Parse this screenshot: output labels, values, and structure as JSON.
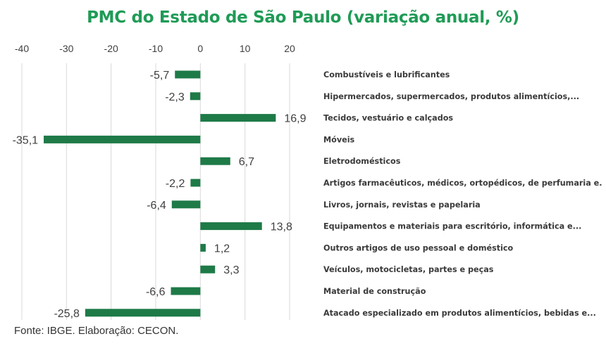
{
  "chart_data": {
    "type": "bar",
    "orientation": "horizontal",
    "title": "PMC do Estado de São Paulo (variação anual, %)",
    "xlabel": "",
    "ylabel": "",
    "xlim": [
      -40,
      20
    ],
    "xticks": [
      -40,
      -30,
      -20,
      -10,
      0,
      10,
      20
    ],
    "xtick_labels": [
      "-40",
      "-30",
      "-20",
      "-10",
      "0",
      "10",
      "20"
    ],
    "grid": true,
    "bar_color": "#1e7a47",
    "categories": [
      "Combustíveis e lubrificantes",
      "Hipermercados, supermercados, produtos alimentícios,...",
      "Tecidos, vestuário e calçados",
      "Móveis",
      "Eletrodomésticos",
      "Artigos farmacêuticos, médicos, ortopédicos, de perfumaria e.",
      "Livros, jornais, revistas e papelaria",
      "Equipamentos e materiais para escritório, informática e...",
      "Outros artigos de uso pessoal e doméstico",
      "Veículos, motocicletas, partes e peças",
      "Material de construção",
      "Atacado especializado em produtos alimentícios, bebidas e..."
    ],
    "values": [
      -5.7,
      -2.3,
      16.9,
      -35.1,
      6.7,
      -2.2,
      -6.4,
      13.8,
      1.2,
      3.3,
      -6.6,
      -25.8
    ],
    "value_labels": [
      "-5,7",
      "-2,3",
      "16,9",
      "-35,1",
      "6,7",
      "-2,2",
      "-6,4",
      "13,8",
      "1,2",
      "3,3",
      "-6,6",
      "-25,8"
    ]
  },
  "footer": {
    "source": "Fonte: IBGE. Elaboração: CECON."
  }
}
